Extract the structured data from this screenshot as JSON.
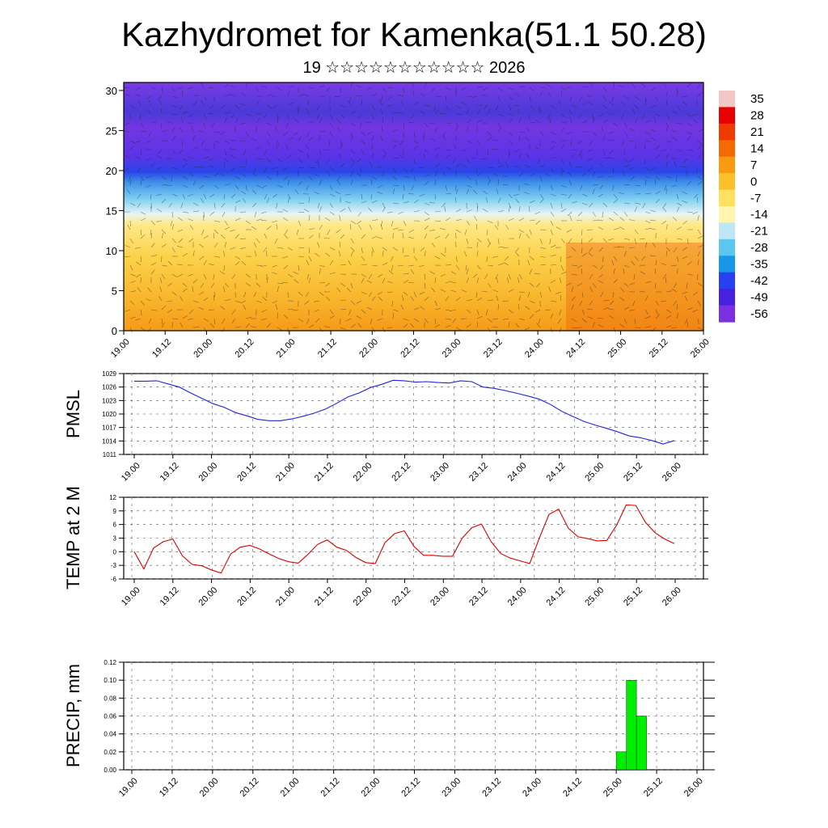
{
  "title": "Kazhydromet for Kamenka(51.1 50.28)",
  "subtitle": "19 ☆☆☆☆☆☆☆☆☆☆☆ 2026",
  "time_labels": [
    "19.00",
    "19.12",
    "20.00",
    "20.12",
    "21.00",
    "21.12",
    "22.00",
    "22.12",
    "23.00",
    "23.12",
    "24.00",
    "24.12",
    "25.00",
    "25.12",
    "26.00"
  ],
  "colors": {
    "pmsl_line": "#2222dd",
    "temp_line": "#dd0000",
    "precip_bar": "#00ee00"
  },
  "chart_data": [
    {
      "type": "heatmap",
      "name": "vertical-cross-section",
      "yticks": [
        0,
        5,
        10,
        15,
        20,
        25,
        30
      ],
      "ylim": [
        0,
        31
      ],
      "colorbar": {
        "labels": [
          "35",
          "28",
          "21",
          "14",
          "7",
          "0",
          "-7",
          "-14",
          "-21",
          "-28",
          "-35",
          "-42",
          "-49",
          "-56"
        ],
        "colors": [
          "#f2c7c7",
          "#e60000",
          "#f03a00",
          "#f56a00",
          "#fa9a10",
          "#fcc02c",
          "#ffe060",
          "#fff4b0",
          "#bfe6f4",
          "#5cc6f0",
          "#1896e8",
          "#2840f0",
          "#4820e0",
          "#7a30e0"
        ]
      }
    },
    {
      "type": "line",
      "name": "pmsl",
      "ylabel": "PMSL",
      "yticks": [
        "1011",
        "1014",
        "1017",
        "1020",
        "1023",
        "1026",
        "1029"
      ],
      "ylim": [
        1011,
        1029
      ],
      "values": [
        1027.3,
        1027.3,
        1027.4,
        1026.7,
        1026.0,
        1024.7,
        1023.5,
        1022.3,
        1021.5,
        1020.3,
        1019.6,
        1018.8,
        1018.5,
        1018.5,
        1018.9,
        1019.5,
        1020.2,
        1021.1,
        1022.4,
        1023.8,
        1024.7,
        1025.9,
        1026.6,
        1027.5,
        1027.4,
        1027.1,
        1027.2,
        1027.0,
        1026.9,
        1027.4,
        1027.2,
        1026.0,
        1025.7,
        1025.2,
        1024.6,
        1024.0,
        1023.3,
        1022.1,
        1020.6,
        1019.4,
        1018.3,
        1017.5,
        1016.8,
        1016.0,
        1015.1,
        1014.7,
        1014.1,
        1013.3,
        1014.1
      ]
    },
    {
      "type": "line",
      "name": "temp-2m",
      "ylabel": "TEMP at 2 M",
      "yticks": [
        "-6",
        "-3",
        "0",
        "3",
        "6",
        "9",
        "12"
      ],
      "ylim": [
        -6,
        12
      ],
      "values": [
        0.0,
        -3.8,
        0.8,
        2.2,
        2.8,
        -0.9,
        -2.8,
        -3.1,
        -4.0,
        -4.7,
        -0.5,
        1.0,
        1.4,
        0.6,
        -0.5,
        -1.5,
        -2.2,
        -2.5,
        -0.6,
        1.6,
        2.6,
        1.0,
        0.3,
        -1.3,
        -2.4,
        -2.6,
        2.0,
        4.0,
        4.6,
        1.2,
        -0.8,
        -0.8,
        -1.0,
        -1.0,
        3.0,
        5.3,
        6.1,
        2.2,
        -0.4,
        -1.4,
        -2.0,
        -2.6,
        3.0,
        8.2,
        9.4,
        5.2,
        3.3,
        2.9,
        2.4,
        2.5,
        5.8,
        10.3,
        10.2,
        6.5,
        4.2,
        2.8,
        1.8
      ]
    },
    {
      "type": "bar",
      "name": "precip",
      "ylabel": "PRECIP, mm",
      "yticks": [
        "0.00",
        "0.02",
        "0.04",
        "0.06",
        "0.08",
        "0.10",
        "0.12"
      ],
      "ylim": [
        0,
        0.12
      ],
      "bars": [
        {
          "start_hour": 144,
          "end_hour": 147,
          "value": 0.02
        },
        {
          "start_hour": 147,
          "end_hour": 150,
          "value": 0.1
        },
        {
          "start_hour": 150,
          "end_hour": 153,
          "value": 0.06
        }
      ]
    }
  ]
}
